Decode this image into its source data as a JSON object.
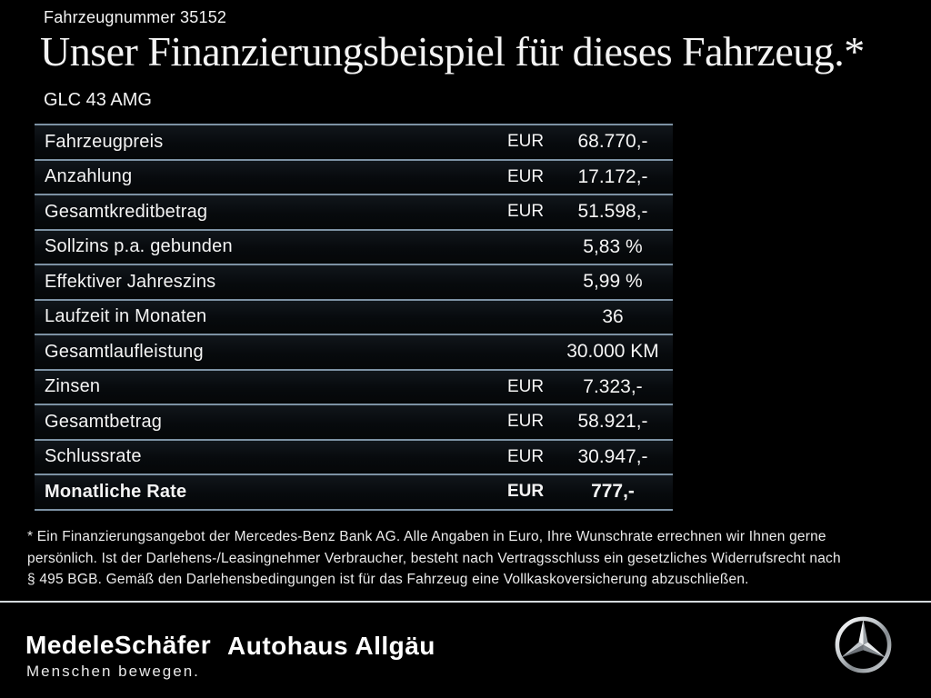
{
  "header": {
    "vehicle_number": "Fahrzeugnummer 35152",
    "title": "Unser Finanzierungsbeispiel für dieses Fahrzeug.*",
    "model": "GLC 43 AMG"
  },
  "table": {
    "rows": [
      {
        "label": "Fahrzeugpreis",
        "currency": "EUR",
        "value": "68.770,-",
        "bold": false
      },
      {
        "label": "Anzahlung",
        "currency": "EUR",
        "value": "17.172,-",
        "bold": false
      },
      {
        "label": "Gesamtkreditbetrag",
        "currency": "EUR",
        "value": "51.598,-",
        "bold": false
      },
      {
        "label": "Sollzins p.a. gebunden",
        "currency": "",
        "value": "5,83 %",
        "bold": false
      },
      {
        "label": "Effektiver Jahreszins",
        "currency": "",
        "value": "5,99 %",
        "bold": false
      },
      {
        "label": "Laufzeit in Monaten",
        "currency": "",
        "value": "36",
        "bold": false
      },
      {
        "label": "Gesamtlaufleistung",
        "currency": "",
        "value": "30.000 KM",
        "bold": false
      },
      {
        "label": "Zinsen",
        "currency": "EUR",
        "value": "7.323,-",
        "bold": false
      },
      {
        "label": "Gesamtbetrag",
        "currency": "EUR",
        "value": "58.921,-",
        "bold": false
      },
      {
        "label": "Schlussrate",
        "currency": "EUR",
        "value": "30.947,-",
        "bold": false
      },
      {
        "label": "Monatliche Rate",
        "currency": "EUR",
        "value": "777,-",
        "bold": true
      }
    ]
  },
  "footnote": {
    "lines": [
      "* Ein Finanzierungsangebot der Mercedes-Benz Bank AG. Alle Angaben in Euro, Ihre Wunschrate errechnen wir Ihnen gerne",
      "persönlich. Ist der Darlehens-/Leasingnehmer Verbraucher, besteht nach Vertragsschluss ein gesetzliches Widerrufsrecht nach",
      "§ 495 BGB. Gemäß den Darlehensbedingungen ist für das Fahrzeug eine Vollkaskoversicherung abzuschließen."
    ]
  },
  "footer": {
    "dealer_logo": "MedeleSchäfer",
    "dealer_tagline": "Menschen bewegen.",
    "dealer2_logo": "Autohaus Allgäu",
    "brand_icon": "mercedes-star-icon"
  },
  "colors": {
    "background": "#000000",
    "text": "#f4f4f4",
    "table_separator": "#7d92a4",
    "footer_divider": "#d4d9dd",
    "row_background": "#0b0f13"
  }
}
